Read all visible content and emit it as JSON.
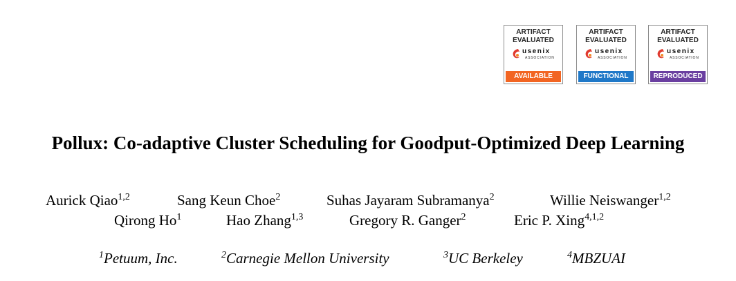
{
  "badges": [
    {
      "line1": "ARTIFACT",
      "line2": "EVALUATED",
      "logo_word": "usenix",
      "logo_sub": "ASSOCIATION",
      "status": "AVAILABLE",
      "color": "#f26522"
    },
    {
      "line1": "ARTIFACT",
      "line2": "EVALUATED",
      "logo_word": "usenix",
      "logo_sub": "ASSOCIATION",
      "status": "FUNCTIONAL",
      "color": "#1f78c8"
    },
    {
      "line1": "ARTIFACT",
      "line2": "EVALUATED",
      "logo_word": "usenix",
      "logo_sub": "ASSOCIATION",
      "status": "REPRODUCED",
      "color": "#6a3fa0"
    }
  ],
  "title": "Pollux: Co-adaptive Cluster Scheduling for Goodput-Optimized Deep Learning",
  "authors": [
    {
      "name": "Aurick Qiao",
      "sup": "1,2"
    },
    {
      "name": "Sang Keun Choe",
      "sup": "2"
    },
    {
      "name": "Suhas Jayaram Subramanya",
      "sup": "2"
    },
    {
      "name": "Willie Neiswanger",
      "sup": "1,2"
    },
    {
      "name": "Qirong Ho",
      "sup": "1"
    },
    {
      "name": "Hao Zhang",
      "sup": "1,3"
    },
    {
      "name": "Gregory R. Ganger",
      "sup": "2"
    },
    {
      "name": "Eric P. Xing",
      "sup": "4,1,2"
    }
  ],
  "affiliations": [
    {
      "sup": "1",
      "name": "Petuum, Inc."
    },
    {
      "sup": "2",
      "name": "Carnegie Mellon University"
    },
    {
      "sup": "3",
      "name": "UC Berkeley"
    },
    {
      "sup": "4",
      "name": "MBZUAI"
    }
  ]
}
